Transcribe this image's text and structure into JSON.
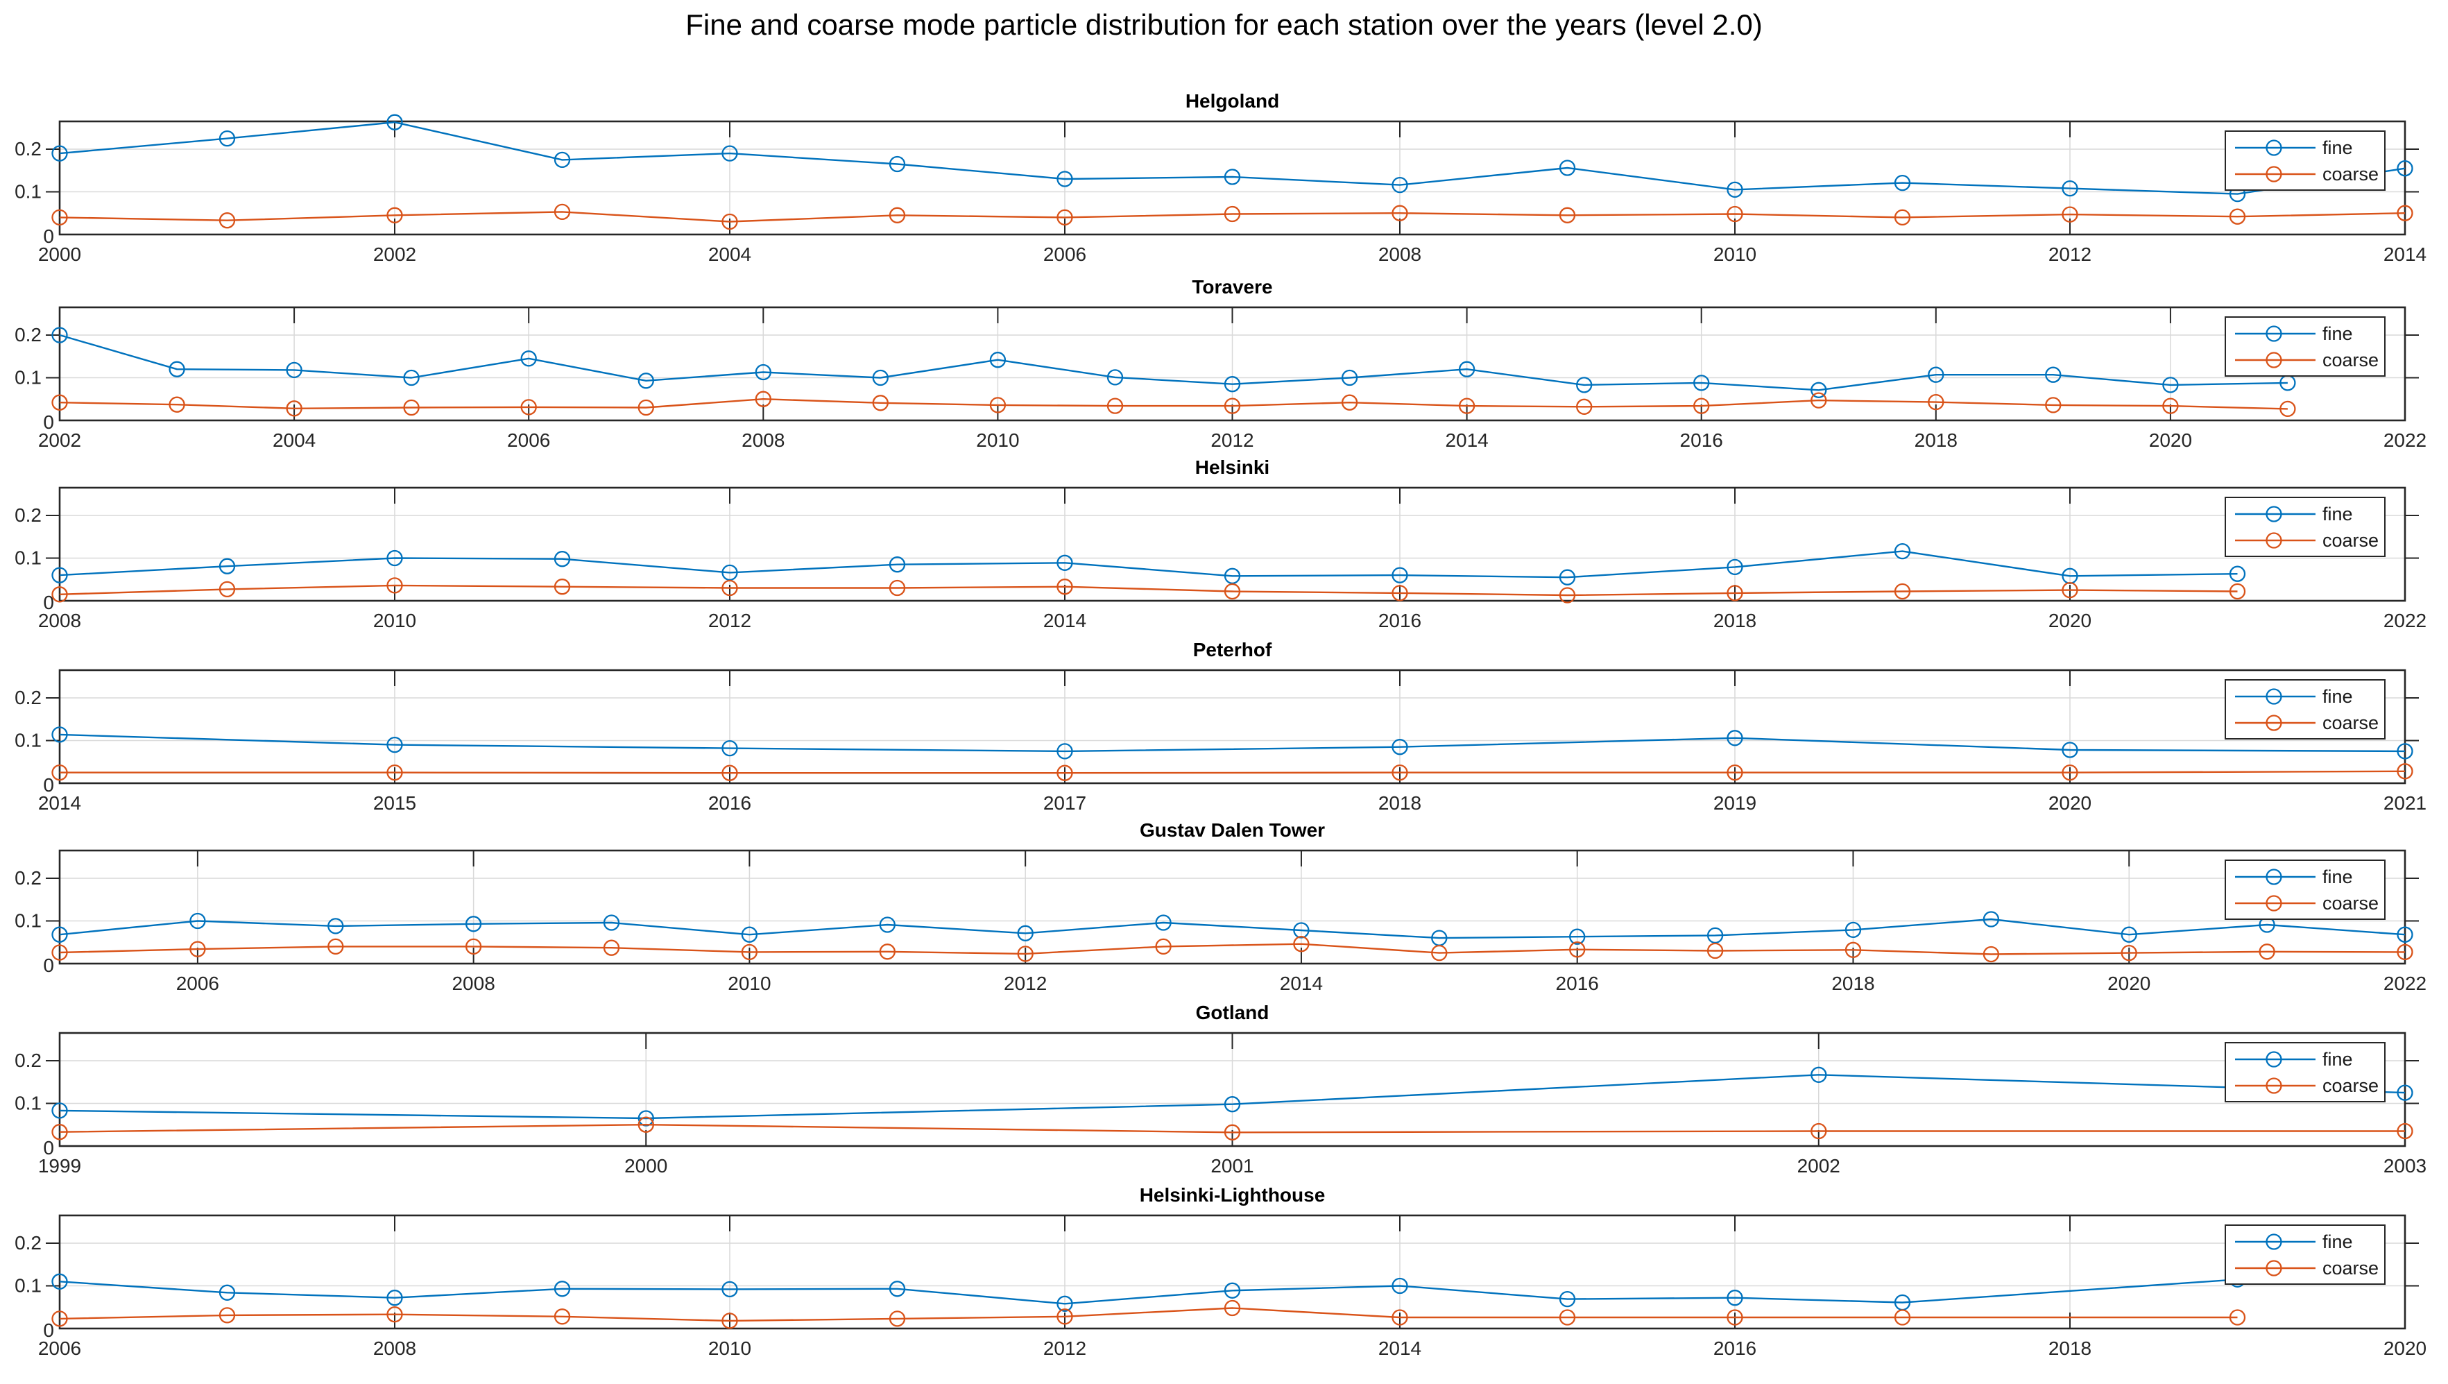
{
  "title": "Fine and coarse mode particle distribution for each station over the years (level 2.0)",
  "legend": {
    "fine": "fine",
    "coarse": "coarse"
  },
  "colors": {
    "fine": "#0072BD",
    "coarse": "#D95319",
    "grid": "#D9D9D9",
    "axis": "#262626"
  },
  "axes": {
    "yticks": [
      "0",
      "0.1",
      "0.2"
    ],
    "ytick_values": [
      0,
      0.1,
      0.2
    ],
    "ylim": [
      0,
      0.265
    ],
    "grid": "on",
    "legend_position": "top-right"
  },
  "chart_data": [
    {
      "type": "line",
      "station": "Helgoland",
      "xlim": [
        2000,
        2014
      ],
      "xticks": [
        2000,
        2002,
        2004,
        2006,
        2008,
        2010,
        2012,
        2014
      ],
      "series": [
        {
          "name": "fine",
          "x": [
            2000,
            2001,
            2002,
            2003,
            2004,
            2005,
            2006,
            2007,
            2008,
            2009,
            2010,
            2011,
            2012,
            2013,
            2014
          ],
          "y": [
            0.19,
            0.225,
            0.263,
            0.175,
            0.19,
            0.165,
            0.13,
            0.135,
            0.116,
            0.156,
            0.105,
            0.121,
            0.108,
            0.095,
            0.155
          ]
        },
        {
          "name": "coarse",
          "x": [
            2000,
            2001,
            2002,
            2003,
            2004,
            2005,
            2006,
            2007,
            2008,
            2009,
            2010,
            2011,
            2012,
            2013,
            2014
          ],
          "y": [
            0.04,
            0.033,
            0.045,
            0.053,
            0.03,
            0.045,
            0.04,
            0.048,
            0.05,
            0.045,
            0.048,
            0.04,
            0.047,
            0.042,
            0.05
          ]
        }
      ]
    },
    {
      "type": "line",
      "station": "Toravere",
      "xlim": [
        2002,
        2022
      ],
      "xticks": [
        2002,
        2004,
        2006,
        2008,
        2010,
        2012,
        2014,
        2016,
        2018,
        2020,
        2022
      ],
      "series": [
        {
          "name": "fine",
          "x": [
            2002,
            2003,
            2004,
            2005,
            2006,
            2007,
            2008,
            2009,
            2010,
            2011,
            2012,
            2013,
            2014,
            2015,
            2016,
            2017,
            2018,
            2019,
            2020,
            2021
          ],
          "y": [
            0.2,
            0.12,
            0.118,
            0.1,
            0.145,
            0.093,
            0.113,
            0.1,
            0.142,
            0.101,
            0.085,
            0.1,
            0.12,
            0.083,
            0.088,
            0.071,
            0.107,
            0.107,
            0.083,
            0.088
          ]
        },
        {
          "name": "coarse",
          "x": [
            2002,
            2003,
            2004,
            2005,
            2006,
            2007,
            2008,
            2009,
            2010,
            2011,
            2012,
            2013,
            2014,
            2015,
            2016,
            2017,
            2018,
            2019,
            2020,
            2021
          ],
          "y": [
            0.042,
            0.037,
            0.028,
            0.03,
            0.031,
            0.03,
            0.05,
            0.041,
            0.036,
            0.034,
            0.034,
            0.042,
            0.034,
            0.032,
            0.034,
            0.047,
            0.043,
            0.036,
            0.034,
            0.027
          ]
        }
      ]
    },
    {
      "type": "line",
      "station": "Helsinki",
      "xlim": [
        2008,
        2022
      ],
      "xticks": [
        2008,
        2010,
        2012,
        2014,
        2016,
        2018,
        2020,
        2022
      ],
      "series": [
        {
          "name": "fine",
          "x": [
            2008,
            2009,
            2010,
            2011,
            2012,
            2013,
            2014,
            2015,
            2016,
            2017,
            2018,
            2019,
            2020,
            2021
          ],
          "y": [
            0.06,
            0.081,
            0.1,
            0.098,
            0.066,
            0.085,
            0.089,
            0.058,
            0.06,
            0.055,
            0.079,
            0.116,
            0.058,
            0.063
          ]
        },
        {
          "name": "coarse",
          "x": [
            2008,
            2009,
            2010,
            2011,
            2012,
            2013,
            2014,
            2015,
            2016,
            2017,
            2018,
            2019,
            2020,
            2021
          ],
          "y": [
            0.015,
            0.027,
            0.036,
            0.033,
            0.03,
            0.03,
            0.033,
            0.022,
            0.018,
            0.013,
            0.018,
            0.022,
            0.025,
            0.022
          ]
        }
      ]
    },
    {
      "type": "line",
      "station": "Peterhof",
      "xlim": [
        2014,
        2021
      ],
      "xticks": [
        2014,
        2015,
        2016,
        2017,
        2018,
        2019,
        2020,
        2021
      ],
      "series": [
        {
          "name": "fine",
          "x": [
            2014,
            2015,
            2016,
            2017,
            2018,
            2019,
            2020,
            2021
          ],
          "y": [
            0.114,
            0.09,
            0.082,
            0.075,
            0.085,
            0.106,
            0.078,
            0.075
          ]
        },
        {
          "name": "coarse",
          "x": [
            2014,
            2015,
            2016,
            2017,
            2018,
            2019,
            2020,
            2021
          ],
          "y": [
            0.025,
            0.025,
            0.024,
            0.024,
            0.025,
            0.025,
            0.025,
            0.028
          ]
        }
      ]
    },
    {
      "type": "line",
      "station": "Gustav Dalen Tower",
      "xlim": [
        2005,
        2022
      ],
      "xticks": [
        2006,
        2008,
        2010,
        2012,
        2014,
        2016,
        2018,
        2020,
        2022
      ],
      "series": [
        {
          "name": "fine",
          "x": [
            2005,
            2006,
            2007,
            2008,
            2009,
            2010,
            2011,
            2012,
            2013,
            2014,
            2015,
            2016,
            2017,
            2018,
            2019,
            2020,
            2021,
            2022
          ],
          "y": [
            0.068,
            0.1,
            0.088,
            0.093,
            0.096,
            0.068,
            0.091,
            0.071,
            0.096,
            0.078,
            0.06,
            0.063,
            0.066,
            0.079,
            0.104,
            0.068,
            0.091,
            0.068
          ]
        },
        {
          "name": "coarse",
          "x": [
            2005,
            2006,
            2007,
            2008,
            2009,
            2010,
            2011,
            2012,
            2013,
            2014,
            2015,
            2016,
            2017,
            2018,
            2019,
            2020,
            2021,
            2022
          ],
          "y": [
            0.026,
            0.034,
            0.04,
            0.04,
            0.037,
            0.027,
            0.028,
            0.023,
            0.04,
            0.046,
            0.025,
            0.033,
            0.03,
            0.032,
            0.022,
            0.025,
            0.028,
            0.027
          ]
        }
      ]
    },
    {
      "type": "line",
      "station": "Gotland",
      "xlim": [
        1999,
        2003
      ],
      "xticks": [
        1999,
        2000,
        2001,
        2002,
        2003
      ],
      "series": [
        {
          "name": "fine",
          "x": [
            1999,
            2000,
            2001,
            2002,
            2003
          ],
          "y": [
            0.083,
            0.065,
            0.098,
            0.167,
            0.125
          ]
        },
        {
          "name": "coarse",
          "x": [
            1999,
            2000,
            2001,
            2002,
            2003
          ],
          "y": [
            0.033,
            0.05,
            0.032,
            0.035,
            0.035
          ]
        }
      ]
    },
    {
      "type": "line",
      "station": "Helsinki-Lighthouse",
      "xlim": [
        2006,
        2020
      ],
      "xticks": [
        2006,
        2008,
        2010,
        2012,
        2014,
        2016,
        2018,
        2020
      ],
      "series": [
        {
          "name": "fine",
          "x": [
            2006,
            2007,
            2008,
            2009,
            2010,
            2011,
            2012,
            2013,
            2014,
            2015,
            2016,
            2017,
            2019
          ],
          "y": [
            0.11,
            0.084,
            0.072,
            0.093,
            0.092,
            0.093,
            0.058,
            0.089,
            0.1,
            0.069,
            0.072,
            0.061,
            0.115
          ]
        },
        {
          "name": "coarse",
          "x": [
            2006,
            2007,
            2008,
            2009,
            2010,
            2011,
            2012,
            2013,
            2014,
            2015,
            2016,
            2017,
            2019
          ],
          "y": [
            0.023,
            0.031,
            0.033,
            0.028,
            0.018,
            0.023,
            0.028,
            0.048,
            0.026,
            0.026,
            0.026,
            0.026,
            0.026
          ]
        }
      ]
    }
  ]
}
